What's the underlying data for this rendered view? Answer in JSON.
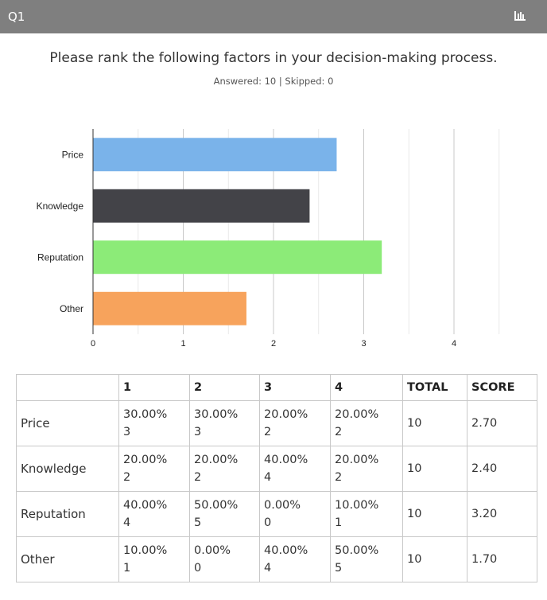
{
  "header": {
    "question_number": "Q1",
    "chart_icon": "bar-chart-icon"
  },
  "question": {
    "title": "Please rank the following factors in your decision-making process.",
    "stats": "Answered: 10 | Skipped: 0"
  },
  "chart_data": {
    "type": "bar",
    "orientation": "horizontal",
    "categories": [
      "Price",
      "Knowledge",
      "Reputation",
      "Other"
    ],
    "values": [
      2.7,
      2.4,
      3.2,
      1.7
    ],
    "colors": [
      "#7ab3ea",
      "#434348",
      "#8ceb78",
      "#f7a35c"
    ],
    "xlim": [
      0,
      4
    ],
    "xticks": [
      "0",
      "1",
      "2",
      "3",
      "4"
    ],
    "grid": true
  },
  "table": {
    "headers": [
      "",
      "1",
      "2",
      "3",
      "4",
      "TOTAL",
      "SCORE"
    ],
    "rows": [
      {
        "label": "Price",
        "cells": [
          {
            "pct": "30.00%",
            "count": "3"
          },
          {
            "pct": "30.00%",
            "count": "3"
          },
          {
            "pct": "20.00%",
            "count": "2"
          },
          {
            "pct": "20.00%",
            "count": "2"
          }
        ],
        "total": "10",
        "score": "2.70"
      },
      {
        "label": "Knowledge",
        "cells": [
          {
            "pct": "20.00%",
            "count": "2"
          },
          {
            "pct": "20.00%",
            "count": "2"
          },
          {
            "pct": "40.00%",
            "count": "4"
          },
          {
            "pct": "20.00%",
            "count": "2"
          }
        ],
        "total": "10",
        "score": "2.40"
      },
      {
        "label": "Reputation",
        "cells": [
          {
            "pct": "40.00%",
            "count": "4"
          },
          {
            "pct": "50.00%",
            "count": "5"
          },
          {
            "pct": "0.00%",
            "count": "0"
          },
          {
            "pct": "10.00%",
            "count": "1"
          }
        ],
        "total": "10",
        "score": "3.20"
      },
      {
        "label": "Other",
        "cells": [
          {
            "pct": "10.00%",
            "count": "1"
          },
          {
            "pct": "0.00%",
            "count": "0"
          },
          {
            "pct": "40.00%",
            "count": "4"
          },
          {
            "pct": "50.00%",
            "count": "5"
          }
        ],
        "total": "10",
        "score": "1.70"
      }
    ]
  }
}
